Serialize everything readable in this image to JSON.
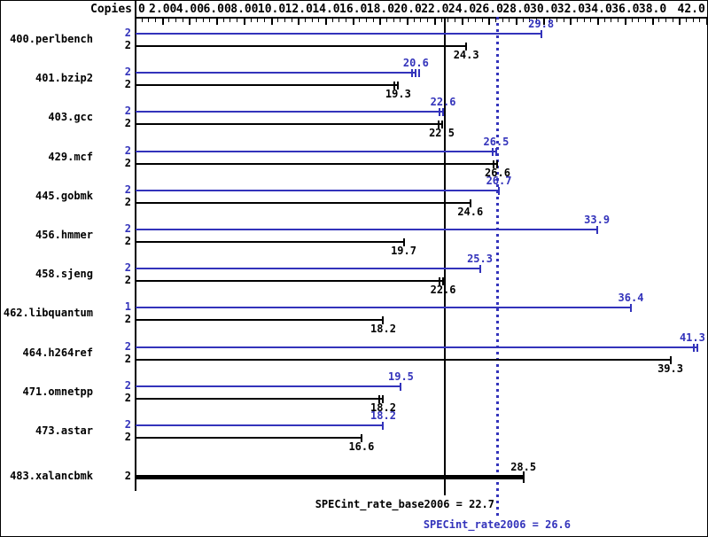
{
  "window": {
    "background": "#ffffff",
    "border": "#000000"
  },
  "colors": {
    "peak_bar": "#3333bb",
    "base_bar": "#000000",
    "peak_text": "#3333bb",
    "base_text": "#000000",
    "axis": "#000000"
  },
  "chart_data": {
    "type": "bar",
    "orientation": "horizontal",
    "copies_header": "Copies",
    "xlim": [
      0,
      42.0
    ],
    "x_major_step": 2.0,
    "x_minor_step": 0.5,
    "grid": false,
    "x_tick_labels": [
      {
        "v": 0,
        "label": "0"
      },
      {
        "v": 2,
        "label": "2.00"
      },
      {
        "v": 4,
        "label": "4.00"
      },
      {
        "v": 6,
        "label": "6.00"
      },
      {
        "v": 8,
        "label": "8.00"
      },
      {
        "v": 10,
        "label": "10.0"
      },
      {
        "v": 12,
        "label": "12.0"
      },
      {
        "v": 14,
        "label": "14.0"
      },
      {
        "v": 16,
        "label": "16.0"
      },
      {
        "v": 18,
        "label": "18.0"
      },
      {
        "v": 20,
        "label": "20.0"
      },
      {
        "v": 22,
        "label": "22.0"
      },
      {
        "v": 24,
        "label": "24.0"
      },
      {
        "v": 26,
        "label": "26.0"
      },
      {
        "v": 28,
        "label": "28.0"
      },
      {
        "v": 30,
        "label": "30.0"
      },
      {
        "v": 32,
        "label": "32.0"
      },
      {
        "v": 34,
        "label": "34.0"
      },
      {
        "v": 36,
        "label": "36.0"
      },
      {
        "v": 38,
        "label": "38.0"
      },
      {
        "v": 42,
        "label": "42.0"
      }
    ],
    "benchmarks": [
      {
        "name": "400.perlbench",
        "peak": {
          "copies": 2,
          "value": 29.8,
          "marks": 1
        },
        "base": {
          "copies": 2,
          "value": 24.3,
          "marks": 1
        }
      },
      {
        "name": "401.bzip2",
        "peak": {
          "copies": 2,
          "value": 20.6,
          "marks": 3
        },
        "base": {
          "copies": 2,
          "value": 19.3,
          "marks": 2
        }
      },
      {
        "name": "403.gcc",
        "peak": {
          "copies": 2,
          "value": 22.6,
          "marks": 2
        },
        "base": {
          "copies": 2,
          "value": 22.5,
          "marks": 2
        }
      },
      {
        "name": "429.mcf",
        "peak": {
          "copies": 2,
          "value": 26.5,
          "marks": 2
        },
        "base": {
          "copies": 2,
          "value": 26.6,
          "marks": 2
        }
      },
      {
        "name": "445.gobmk",
        "peak": {
          "copies": 2,
          "value": 26.7,
          "marks": 1
        },
        "base": {
          "copies": 2,
          "value": 24.6,
          "marks": 1
        }
      },
      {
        "name": "456.hmmer",
        "peak": {
          "copies": 2,
          "value": 33.9,
          "marks": 1
        },
        "base": {
          "copies": 2,
          "value": 19.7,
          "marks": 1
        }
      },
      {
        "name": "458.sjeng",
        "peak": {
          "copies": 2,
          "value": 25.3,
          "marks": 1
        },
        "base": {
          "copies": 2,
          "value": 22.6,
          "marks": 2
        }
      },
      {
        "name": "462.libquantum",
        "peak": {
          "copies": 1,
          "value": 36.4,
          "marks": 1
        },
        "base": {
          "copies": 2,
          "value": 18.2,
          "marks": 1
        }
      },
      {
        "name": "464.h264ref",
        "peak": {
          "copies": 2,
          "value": 41.3,
          "marks": 2
        },
        "base": {
          "copies": 2,
          "value": 39.3,
          "marks": 1
        }
      },
      {
        "name": "471.omnetpp",
        "peak": {
          "copies": 2,
          "value": 19.5,
          "marks": 1
        },
        "base": {
          "copies": 2,
          "value": 18.2,
          "marks": 2
        }
      },
      {
        "name": "473.astar",
        "peak": {
          "copies": 2,
          "value": 18.2,
          "marks": 1
        },
        "base": {
          "copies": 2,
          "value": 16.6,
          "marks": 1
        }
      },
      {
        "name": "483.xalancbmk",
        "peak": null,
        "base": {
          "copies": 2,
          "value": 28.5,
          "marks": 1,
          "thick": true
        }
      }
    ],
    "reference_lines": [
      {
        "name": "base",
        "label": "SPECint_rate_base2006 = 22.7",
        "value": 22.7,
        "style": "solid",
        "color": "#000000"
      },
      {
        "name": "peak",
        "label": "SPECint_rate2006 = 26.6",
        "value": 26.6,
        "style": "dotted",
        "color": "#3333bb"
      }
    ]
  }
}
